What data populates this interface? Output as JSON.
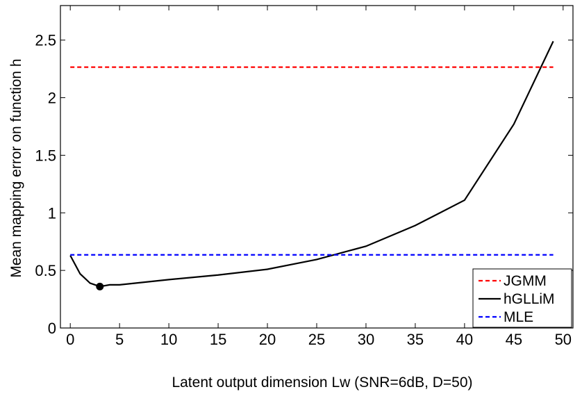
{
  "chart_data": {
    "type": "line",
    "xlabel": "Latent output dimension Lw (SNR=6dB, D=50)",
    "ylabel": "Mean mapping error on function h",
    "xlim": [
      -1,
      51
    ],
    "ylim": [
      0,
      2.8
    ],
    "x_ticks": [
      0,
      5,
      10,
      15,
      20,
      25,
      30,
      35,
      40,
      45,
      50
    ],
    "y_ticks": [
      0,
      0.5,
      1,
      1.5,
      2,
      2.5
    ],
    "x_tick_labels": [
      "0",
      "5",
      "10",
      "15",
      "20",
      "25",
      "30",
      "35",
      "40",
      "45",
      "50"
    ],
    "y_tick_labels": [
      "0",
      "0.5",
      "1",
      "1.5",
      "2",
      "2.5"
    ],
    "grid": false,
    "legend_position": "bottom-right",
    "series": [
      {
        "name": "JGMM",
        "color": "#ff0000",
        "style": "dashed",
        "x": [
          0,
          49
        ],
        "y": [
          2.265,
          2.265
        ]
      },
      {
        "name": "hGLLiM",
        "color": "#000000",
        "style": "solid",
        "x": [
          0,
          1,
          2,
          3,
          4,
          5,
          10,
          15,
          20,
          25,
          30,
          35,
          40,
          45,
          49
        ],
        "y": [
          0.63,
          0.47,
          0.39,
          0.36,
          0.375,
          0.375,
          0.42,
          0.46,
          0.51,
          0.595,
          0.71,
          0.89,
          1.11,
          1.77,
          2.49
        ]
      },
      {
        "name": "MLE",
        "color": "#0000ff",
        "style": "dashed",
        "x": [
          0,
          49
        ],
        "y": [
          0.635,
          0.635
        ]
      }
    ],
    "annotations": [
      {
        "type": "marker",
        "series": "hGLLiM",
        "x": 3,
        "y": 0.36,
        "meaning": "minimum"
      }
    ]
  }
}
